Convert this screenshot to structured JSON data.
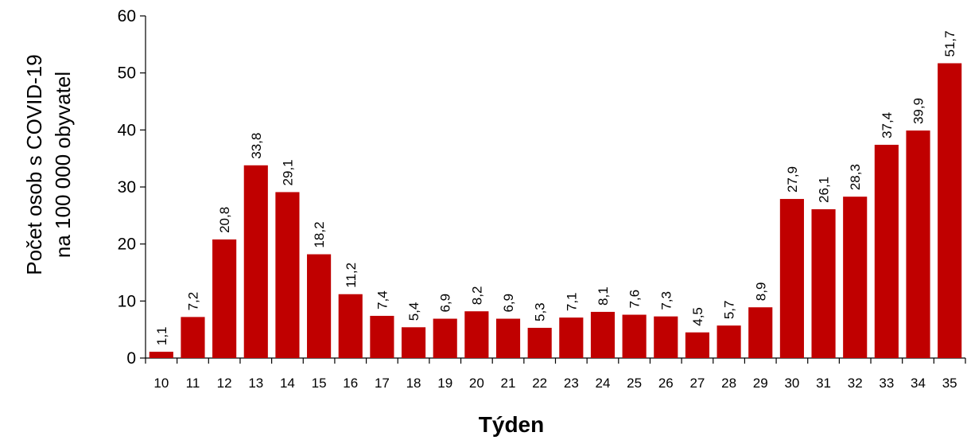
{
  "chart_data": {
    "type": "bar",
    "xlabel": "Týden",
    "ylabel_lines": [
      "Počet osob s COVID-19",
      "na 100 000 obyvatel"
    ],
    "ylim": [
      0,
      60
    ],
    "yticks": [
      0,
      10,
      20,
      30,
      40,
      50,
      60
    ],
    "grid": false,
    "categories": [
      "10",
      "11",
      "12",
      "13",
      "14",
      "15",
      "16",
      "17",
      "18",
      "19",
      "20",
      "21",
      "22",
      "23",
      "24",
      "25",
      "26",
      "27",
      "28",
      "29",
      "30",
      "31",
      "32",
      "33",
      "34",
      "35"
    ],
    "values": [
      1.1,
      7.2,
      20.8,
      33.8,
      29.1,
      18.2,
      11.2,
      7.4,
      5.4,
      6.9,
      8.2,
      6.9,
      5.3,
      7.1,
      8.1,
      7.6,
      7.3,
      4.5,
      5.7,
      8.9,
      27.9,
      26.1,
      28.3,
      37.4,
      39.9,
      51.7
    ],
    "value_labels": [
      "1,1",
      "7,2",
      "20,8",
      "33,8",
      "29,1",
      "18,2",
      "11,2",
      "7,4",
      "5,4",
      "6,9",
      "8,2",
      "6,9",
      "5,3",
      "7,1",
      "8,1",
      "7,6",
      "7,3",
      "4,5",
      "5,7",
      "8,9",
      "27,9",
      "26,1",
      "28,3",
      "37,4",
      "39,9",
      "51,7"
    ],
    "bar_color": "#C00000"
  }
}
